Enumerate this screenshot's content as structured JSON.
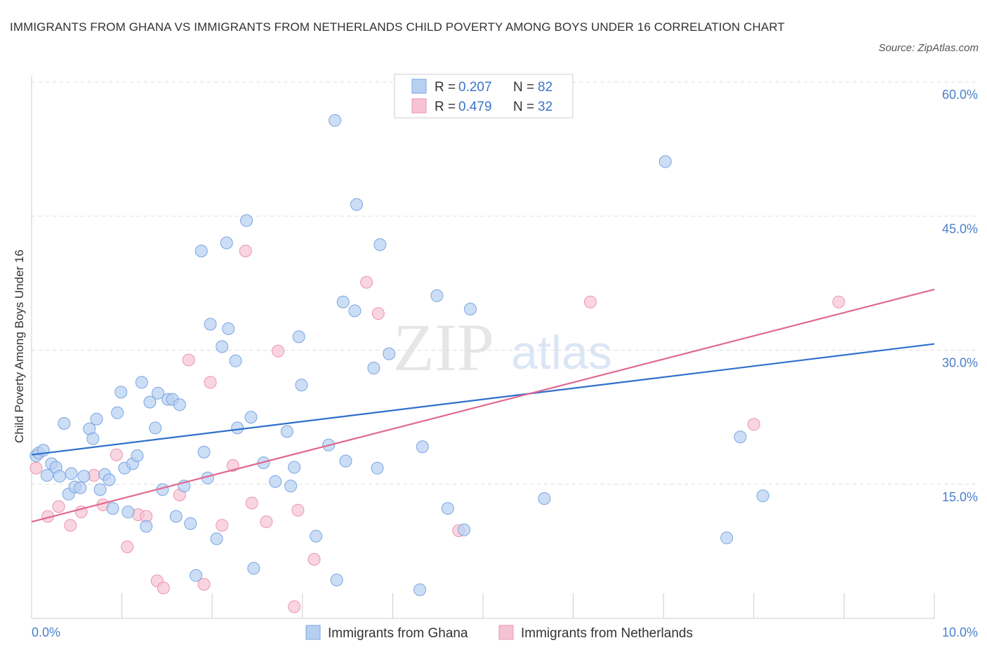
{
  "title": "IMMIGRANTS FROM GHANA VS IMMIGRANTS FROM NETHERLANDS CHILD POVERTY AMONG BOYS UNDER 16 CORRELATION CHART",
  "source": "Source: ZipAtlas.com",
  "watermark": {
    "zip": "ZIP",
    "atlas": "atlas"
  },
  "colors": {
    "ghana_fill": "#b7d0f2",
    "ghana_stroke": "#7aa5e0",
    "ghana_line": "#2f6fcc",
    "neth_fill": "#f6c3d2",
    "neth_stroke": "#eb95b0",
    "neth_line": "#e0688f",
    "grid": "#dddddd",
    "tick_text": "#4a7fc9"
  },
  "legend": {
    "rows": [
      {
        "r_label": "R = ",
        "r_value": "0.207",
        "n_label": "N = ",
        "n_value": "82",
        "series": "ghana"
      },
      {
        "r_label": "R = ",
        "r_value": "0.479",
        "n_label": "N = ",
        "n_value": "32",
        "series": "neth"
      }
    ]
  },
  "chart_data": {
    "type": "scatter",
    "title": "IMMIGRANTS FROM GHANA VS IMMIGRANTS FROM NETHERLANDS CHILD POVERTY AMONG BOYS UNDER 16 CORRELATION CHART",
    "xlabel": "",
    "ylabel": "Child Poverty Among Boys Under 16",
    "xlim": [
      0,
      10
    ],
    "ylim": [
      0,
      60
    ],
    "x_tick_labels": [
      {
        "value": 0,
        "label": "0.0%"
      },
      {
        "value": 10,
        "label": "10.0%"
      }
    ],
    "y_tick_labels": [
      {
        "value": 15,
        "label": "15.0%"
      },
      {
        "value": 30,
        "label": "30.0%"
      },
      {
        "value": 45,
        "label": "45.0%"
      },
      {
        "value": 60,
        "label": "60.0%"
      }
    ],
    "grid": true,
    "legend_position": "top-center",
    "series": [
      {
        "name": "Immigrants from Ghana",
        "R": 0.207,
        "N": 82,
        "trend": {
          "x": [
            0,
            10
          ],
          "y": [
            18.3,
            30.7
          ]
        },
        "points": [
          [
            0.05,
            18.2
          ],
          [
            0.08,
            18.5
          ],
          [
            0.13,
            18.8
          ],
          [
            0.17,
            16.0
          ],
          [
            0.22,
            17.3
          ],
          [
            0.27,
            16.9
          ],
          [
            0.31,
            15.9
          ],
          [
            0.36,
            21.8
          ],
          [
            0.41,
            13.9
          ],
          [
            0.44,
            16.2
          ],
          [
            0.48,
            14.7
          ],
          [
            0.54,
            14.6
          ],
          [
            0.58,
            15.9
          ],
          [
            0.64,
            21.2
          ],
          [
            0.68,
            20.1
          ],
          [
            0.72,
            22.3
          ],
          [
            0.76,
            14.4
          ],
          [
            0.81,
            16.1
          ],
          [
            0.86,
            15.5
          ],
          [
            0.9,
            12.3
          ],
          [
            0.95,
            23.0
          ],
          [
            0.99,
            25.3
          ],
          [
            1.03,
            16.8
          ],
          [
            1.07,
            11.9
          ],
          [
            1.12,
            17.3
          ],
          [
            1.17,
            18.2
          ],
          [
            1.22,
            26.4
          ],
          [
            1.27,
            10.3
          ],
          [
            1.31,
            24.2
          ],
          [
            1.37,
            21.3
          ],
          [
            1.4,
            25.2
          ],
          [
            1.45,
            14.4
          ],
          [
            1.51,
            24.5
          ],
          [
            1.56,
            24.5
          ],
          [
            1.6,
            11.4
          ],
          [
            1.64,
            23.9
          ],
          [
            1.69,
            14.8
          ],
          [
            1.76,
            10.6
          ],
          [
            1.82,
            4.8
          ],
          [
            1.88,
            41.1
          ],
          [
            1.91,
            18.6
          ],
          [
            1.95,
            15.7
          ],
          [
            1.98,
            32.9
          ],
          [
            2.05,
            8.9
          ],
          [
            2.11,
            30.4
          ],
          [
            2.16,
            42.0
          ],
          [
            2.18,
            32.4
          ],
          [
            2.26,
            28.8
          ],
          [
            2.28,
            21.3
          ],
          [
            2.38,
            44.5
          ],
          [
            2.43,
            22.5
          ],
          [
            2.46,
            5.6
          ],
          [
            2.57,
            17.4
          ],
          [
            2.7,
            15.3
          ],
          [
            2.83,
            20.9
          ],
          [
            2.87,
            14.8
          ],
          [
            2.91,
            16.9
          ],
          [
            2.96,
            31.5
          ],
          [
            2.99,
            26.1
          ],
          [
            3.15,
            9.2
          ],
          [
            3.29,
            19.4
          ],
          [
            3.36,
            55.7
          ],
          [
            3.38,
            4.3
          ],
          [
            3.45,
            35.4
          ],
          [
            3.48,
            17.6
          ],
          [
            3.58,
            34.4
          ],
          [
            3.6,
            46.3
          ],
          [
            3.79,
            28.0
          ],
          [
            3.83,
            16.8
          ],
          [
            3.86,
            41.8
          ],
          [
            3.96,
            29.6
          ],
          [
            4.3,
            3.2
          ],
          [
            4.33,
            19.2
          ],
          [
            4.49,
            36.1
          ],
          [
            4.61,
            12.3
          ],
          [
            4.79,
            9.9
          ],
          [
            4.86,
            34.6
          ],
          [
            5.68,
            13.4
          ],
          [
            7.02,
            51.1
          ],
          [
            7.7,
            9.0
          ],
          [
            7.85,
            20.3
          ],
          [
            8.1,
            13.7
          ]
        ]
      },
      {
        "name": "Immigrants from Netherlands",
        "R": 0.479,
        "N": 32,
        "trend": {
          "x": [
            0,
            10
          ],
          "y": [
            10.8,
            36.8
          ]
        },
        "points": [
          [
            0.05,
            16.8
          ],
          [
            0.18,
            11.4
          ],
          [
            0.3,
            12.5
          ],
          [
            0.43,
            10.4
          ],
          [
            0.55,
            11.9
          ],
          [
            0.69,
            16.0
          ],
          [
            0.79,
            12.7
          ],
          [
            0.94,
            18.3
          ],
          [
            1.06,
            8.0
          ],
          [
            1.18,
            11.6
          ],
          [
            1.27,
            11.4
          ],
          [
            1.39,
            4.2
          ],
          [
            1.46,
            3.4
          ],
          [
            1.64,
            13.8
          ],
          [
            1.74,
            28.9
          ],
          [
            1.91,
            3.8
          ],
          [
            1.98,
            26.4
          ],
          [
            2.11,
            10.4
          ],
          [
            2.23,
            17.1
          ],
          [
            2.37,
            41.1
          ],
          [
            2.44,
            12.9
          ],
          [
            2.6,
            10.8
          ],
          [
            2.73,
            29.9
          ],
          [
            2.91,
            1.3
          ],
          [
            2.95,
            12.1
          ],
          [
            3.13,
            6.6
          ],
          [
            3.71,
            37.6
          ],
          [
            3.84,
            34.1
          ],
          [
            4.73,
            9.8
          ],
          [
            6.19,
            35.4
          ],
          [
            8.0,
            21.7
          ],
          [
            8.94,
            35.4
          ]
        ]
      }
    ]
  },
  "bottom_legend": [
    {
      "label": "Immigrants from Ghana",
      "series": "ghana"
    },
    {
      "label": "Immigrants from Netherlands",
      "series": "neth"
    }
  ]
}
